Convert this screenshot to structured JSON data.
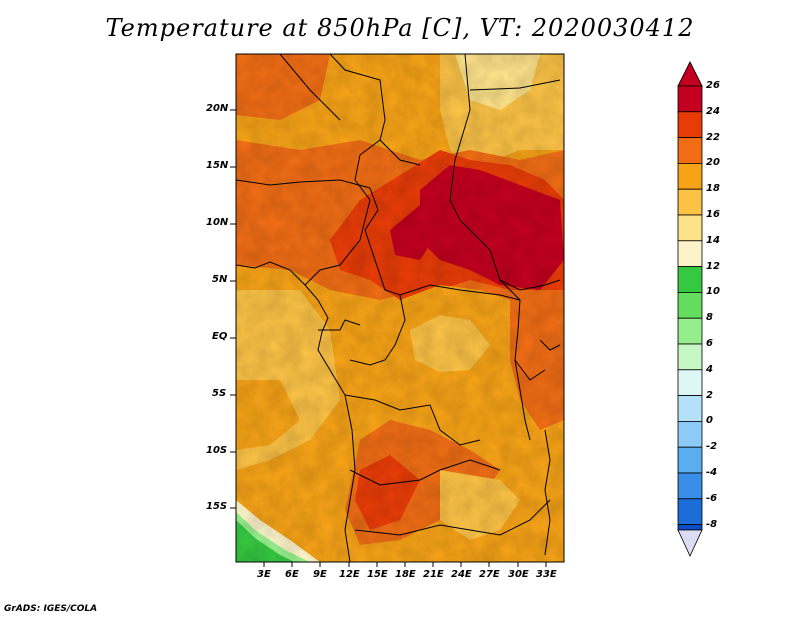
{
  "title": "Temperature at 850hPa [C], VT: 2020030412",
  "footer": "GrADS: IGES/COLA",
  "map": {
    "type": "filled-contour-map",
    "variable": "Temperature at 850hPa",
    "units": "C",
    "valid_time": "2020030412",
    "lon_ticks": [
      "3E",
      "6E",
      "9E",
      "12E",
      "15E",
      "18E",
      "21E",
      "24E",
      "27E",
      "30E",
      "33E"
    ],
    "lat_ticks": [
      "20N",
      "15N",
      "10N",
      "5N",
      "EQ",
      "5S",
      "10S",
      "15S"
    ]
  },
  "colorbar": {
    "labels": [
      "26",
      "24",
      "22",
      "20",
      "18",
      "16",
      "14",
      "12",
      "10",
      "8",
      "6",
      "4",
      "2",
      "0",
      "-2",
      "-4",
      "-6",
      "-8"
    ],
    "colors": [
      "#c3001f",
      "#e83c07",
      "#f06d15",
      "#f7a317",
      "#fbc246",
      "#fde28a",
      "#fcf4c8",
      "#35c841",
      "#64dd5e",
      "#96ed8c",
      "#c6f7c4",
      "#dff6f7",
      "#b4e1f8",
      "#8ccbf6",
      "#5aaef0",
      "#3a8ee8",
      "#1c6dd7",
      "#0b4dc4",
      "#073696",
      "#04195e"
    ],
    "under_color": "#dcdcf5"
  }
}
